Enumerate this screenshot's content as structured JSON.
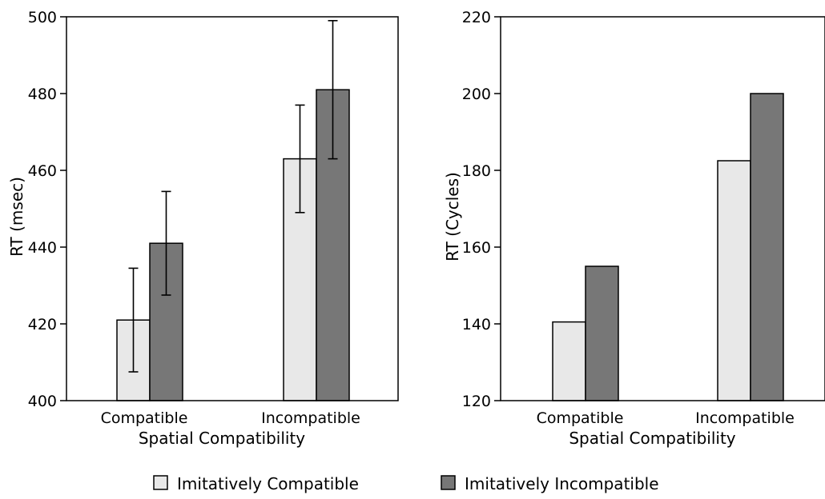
{
  "chart_data": [
    {
      "type": "bar",
      "xlabel": "Spatial Compatibility",
      "ylabel": "RT (msec)",
      "categories": [
        "Compatible",
        "Incompatible"
      ],
      "ylim": [
        400,
        500
      ],
      "yticks": [
        400,
        420,
        440,
        460,
        480,
        500
      ],
      "series": [
        {
          "name": "Imitatively Compatible",
          "values": [
            421,
            463
          ],
          "error": [
            13.5,
            14
          ],
          "color": "#e8e8e8"
        },
        {
          "name": "Imitatively Incompatible",
          "values": [
            441,
            481
          ],
          "error": [
            13.5,
            18
          ],
          "color": "#777777"
        }
      ],
      "grid": false
    },
    {
      "type": "bar",
      "xlabel": "Spatial Compatibility",
      "ylabel": "RT (Cycles)",
      "categories": [
        "Compatible",
        "Incompatible"
      ],
      "ylim": [
        120,
        220
      ],
      "yticks": [
        120,
        140,
        160,
        180,
        200,
        220
      ],
      "series": [
        {
          "name": "Imitatively Compatible",
          "values": [
            140.5,
            182.5
          ],
          "color": "#e8e8e8"
        },
        {
          "name": "Imitatively Incompatible",
          "values": [
            155,
            200
          ],
          "color": "#777777"
        }
      ],
      "grid": false
    }
  ],
  "legend": {
    "position": "bottom-center",
    "items": [
      {
        "label": "Imitatively Compatible",
        "color": "#e8e8e8"
      },
      {
        "label": "Imitatively Incompatible",
        "color": "#777777"
      }
    ]
  }
}
